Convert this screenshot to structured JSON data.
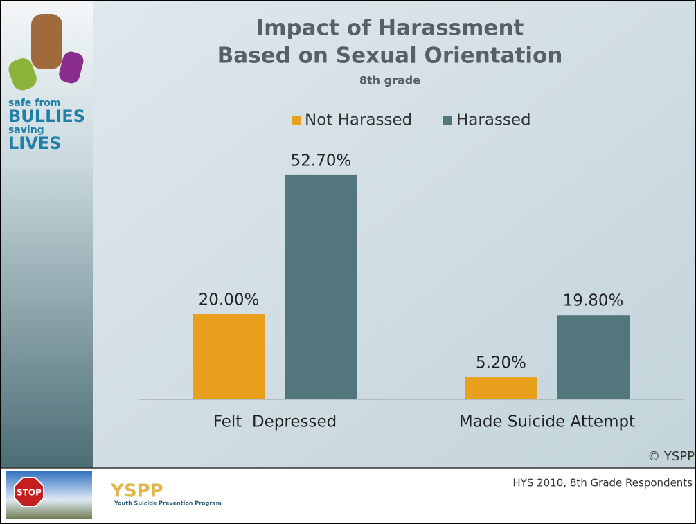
{
  "chart_data": {
    "type": "bar",
    "title": [
      "Impact of Harassment",
      "Based on Sexual Orientation"
    ],
    "subtitle": "8th grade",
    "categories": [
      "Felt  Depressed",
      "Made Suicide Attempt"
    ],
    "series": [
      {
        "name": "Not Harassed",
        "color": "#e9a11d",
        "values": [
          20.0,
          5.2
        ],
        "value_labels": [
          "20.00%",
          "5.20%"
        ]
      },
      {
        "name": "Harassed",
        "color": "#53767d",
        "values": [
          52.7,
          19.8
        ],
        "value_labels": [
          "52.70%",
          "19.80%"
        ]
      }
    ],
    "legend": "top"
  },
  "logo": {
    "lines": [
      "safe from",
      "BULLIES",
      "saving",
      "LIVES"
    ],
    "sign": "STOP"
  },
  "footer": {
    "copyright": "© YSPP",
    "source": "HYS 2010, 8th Grade Respondents",
    "org": "YSPP",
    "org_name": "Youth Suicide Prevention Program"
  }
}
